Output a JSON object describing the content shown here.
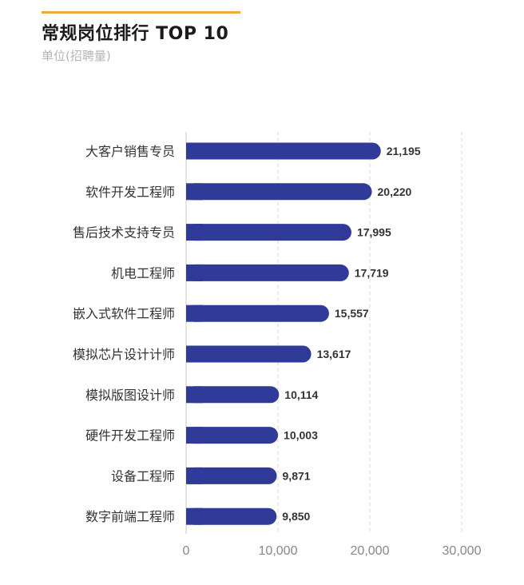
{
  "header": {
    "title": "常规岗位排行 TOP 10",
    "subtitle": "单位(招聘量)"
  },
  "colors": {
    "bar": "#303A99",
    "accent": "#F2A93B",
    "title": "#1b1b1b",
    "subtitle": "#b5b5b5",
    "label": "#333333",
    "axis": "#888888",
    "grid": "#d9d9d9"
  },
  "chart_data": {
    "type": "bar",
    "orientation": "horizontal",
    "title": "常规岗位排行 TOP 10",
    "subtitle": "单位(招聘量)",
    "categories": [
      "大客户销售专员",
      "软件开发工程师",
      "售后技术支持专员",
      "机电工程师",
      "嵌入式软件工程师",
      "模拟芯片设计计师",
      "模拟版图设计师",
      "硬件开发工程师",
      "设备工程师",
      "数字前端工程师"
    ],
    "values": [
      21195,
      20220,
      17995,
      17719,
      15557,
      13617,
      10114,
      10003,
      9871,
      9850
    ],
    "data_labels": [
      "21,195",
      "20,220",
      "17,995",
      "17,719",
      "15,557",
      "13,617",
      "10,114",
      "10,003",
      "9,871",
      "9,850"
    ],
    "xticks": [
      0,
      10000,
      20000,
      30000
    ],
    "xtick_labels": [
      "0",
      "10,000",
      "20,000",
      "30,000"
    ],
    "xlim": [
      0,
      30000
    ],
    "grid": "vertical dashed",
    "legend": "none"
  }
}
